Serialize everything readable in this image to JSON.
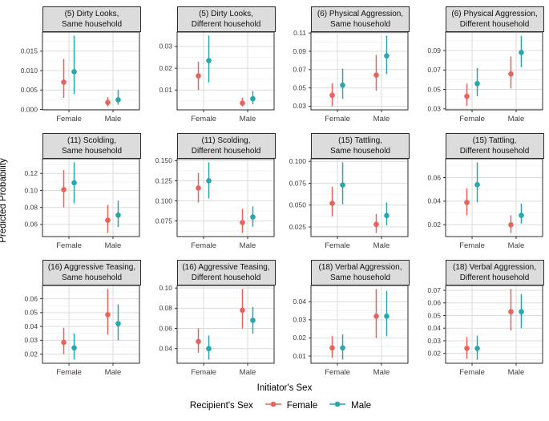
{
  "ylabel": "Predicted Probability",
  "xlabel": "Initiator's Sex",
  "legend": {
    "title": "Recipient's Sex",
    "entries": [
      {
        "label": "Female",
        "color": "#E8635C"
      },
      {
        "label": "Male",
        "color": "#26A8AC"
      }
    ]
  },
  "colors": {
    "female": "#E8635C",
    "male": "#26A8AC",
    "strip_bg": "#DCDCDC",
    "panel_border": "#2b2b2b",
    "grid_major": "#DCDCDC",
    "grid_minor": "#F1F1F1",
    "tick_text": "#404040"
  },
  "chart_data": {
    "type": "pointrange",
    "categories": [
      "Female",
      "Male"
    ],
    "series_names": [
      "Female",
      "Male"
    ],
    "legend_position": "bottom",
    "grid": true,
    "panels": [
      {
        "title_lines": [
          "(5) Dirty Looks,",
          "Same household"
        ],
        "ylim": [
          -0.0001,
          0.0199
        ],
        "ytick_values": [
          0.0,
          0.005,
          0.01,
          0.015
        ],
        "ytick_labels": [
          "0.000",
          "0.005",
          "0.010",
          "0.015"
        ],
        "series": [
          {
            "name": "Female",
            "color_key": "female",
            "y": [
              0.007,
              0.0018
            ],
            "lo": [
              0.003,
              0.0008
            ],
            "hi": [
              0.013,
              0.0032
            ]
          },
          {
            "name": "Male",
            "color_key": "male",
            "y": [
              0.0097,
              0.0025
            ],
            "lo": [
              0.004,
              0.0012
            ],
            "hi": [
              0.019,
              0.005
            ]
          }
        ]
      },
      {
        "title_lines": [
          "(5) Dirty Looks,",
          "Different household"
        ],
        "ylim": [
          0.0009,
          0.0366
        ],
        "ytick_values": [
          0.01,
          0.02,
          0.03
        ],
        "ytick_labels": [
          "0.01",
          "0.02",
          "0.03"
        ],
        "series": [
          {
            "name": "Female",
            "color_key": "female",
            "y": [
              0.0165,
              0.004
            ],
            "lo": [
              0.01,
              0.0025
            ],
            "hi": [
              0.023,
              0.0065
            ]
          },
          {
            "name": "Male",
            "color_key": "male",
            "y": [
              0.0235,
              0.006
            ],
            "lo": [
              0.0135,
              0.0035
            ],
            "hi": [
              0.035,
              0.0095
            ]
          }
        ]
      },
      {
        "title_lines": [
          "(6) Physical Aggression,",
          "Same household"
        ],
        "ylim": [
          0.026,
          0.111
        ],
        "ytick_values": [
          0.03,
          0.05,
          0.07,
          0.09,
          0.11
        ],
        "ytick_labels": [
          "0.03",
          "0.05",
          "0.07",
          "0.09",
          "0.11"
        ],
        "series": [
          {
            "name": "Female",
            "color_key": "female",
            "y": [
              0.042,
              0.064
            ],
            "lo": [
              0.03,
              0.047
            ],
            "hi": [
              0.055,
              0.086
            ]
          },
          {
            "name": "Male",
            "color_key": "male",
            "y": [
              0.053,
              0.085
            ],
            "lo": [
              0.038,
              0.065
            ],
            "hi": [
              0.071,
              0.107
            ]
          }
        ]
      },
      {
        "title_lines": [
          "(6) Physical Aggression,",
          "Different household"
        ],
        "ylim": [
          0.029,
          0.109
        ],
        "ytick_values": [
          0.03,
          0.05,
          0.07,
          0.09
        ],
        "ytick_labels": [
          "0.03",
          "0.05",
          "0.07",
          "0.09"
        ],
        "series": [
          {
            "name": "Female",
            "color_key": "female",
            "y": [
              0.043,
              0.066
            ],
            "lo": [
              0.033,
              0.051
            ],
            "hi": [
              0.056,
              0.084
            ]
          },
          {
            "name": "Male",
            "color_key": "male",
            "y": [
              0.056,
              0.088
            ],
            "lo": [
              0.043,
              0.073
            ],
            "hi": [
              0.072,
              0.105
            ]
          }
        ]
      },
      {
        "title_lines": [
          "(11) Scolding,",
          "Same household"
        ],
        "ylim": [
          0.0458,
          0.1372
        ],
        "ytick_values": [
          0.06,
          0.08,
          0.1,
          0.12
        ],
        "ytick_labels": [
          "0.06",
          "0.08",
          "0.10",
          "0.12"
        ],
        "series": [
          {
            "name": "Female",
            "color_key": "female",
            "y": [
              0.101,
              0.065
            ],
            "lo": [
              0.08,
              0.05
            ],
            "hi": [
              0.124,
              0.083
            ]
          },
          {
            "name": "Male",
            "color_key": "male",
            "y": [
              0.109,
              0.071
            ],
            "lo": [
              0.085,
              0.057
            ],
            "hi": [
              0.133,
              0.088
            ]
          }
        ]
      },
      {
        "title_lines": [
          "(11) Scolding,",
          "Different household"
        ],
        "ylim": [
          0.0556,
          0.1524
        ],
        "ytick_values": [
          0.075,
          0.1,
          0.125,
          0.15
        ],
        "ytick_labels": [
          "0.075",
          "0.100",
          "0.125",
          "0.150"
        ],
        "series": [
          {
            "name": "Female",
            "color_key": "female",
            "y": [
              0.116,
              0.073
            ],
            "lo": [
              0.098,
              0.06
            ],
            "hi": [
              0.135,
              0.09
            ]
          },
          {
            "name": "Male",
            "color_key": "male",
            "y": [
              0.125,
              0.08
            ],
            "lo": [
              0.103,
              0.068
            ],
            "hi": [
              0.148,
              0.093
            ]
          }
        ]
      },
      {
        "title_lines": [
          "(15) Tattling,",
          "Same household"
        ],
        "ylim": [
          0.014,
          0.103
        ],
        "ytick_values": [
          0.025,
          0.05,
          0.075,
          0.1
        ],
        "ytick_labels": [
          "0.025",
          "0.050",
          "0.075",
          "0.100"
        ],
        "series": [
          {
            "name": "Female",
            "color_key": "female",
            "y": [
              0.052,
              0.028
            ],
            "lo": [
              0.037,
              0.018
            ],
            "hi": [
              0.071,
              0.04
            ]
          },
          {
            "name": "Male",
            "color_key": "male",
            "y": [
              0.073,
              0.038
            ],
            "lo": [
              0.051,
              0.027
            ],
            "hi": [
              0.099,
              0.053
            ]
          }
        ]
      },
      {
        "title_lines": [
          "(15) Tattling,",
          "Different household"
        ],
        "ylim": [
          0.01,
          0.076
        ],
        "ytick_values": [
          0.02,
          0.04,
          0.06
        ],
        "ytick_labels": [
          "0.02",
          "0.04",
          "0.06"
        ],
        "series": [
          {
            "name": "Female",
            "color_key": "female",
            "y": [
              0.039,
              0.02
            ],
            "lo": [
              0.028,
              0.013
            ],
            "hi": [
              0.051,
              0.028
            ]
          },
          {
            "name": "Male",
            "color_key": "male",
            "y": [
              0.054,
              0.028
            ],
            "lo": [
              0.039,
              0.021
            ],
            "hi": [
              0.073,
              0.038
            ]
          }
        ]
      },
      {
        "title_lines": [
          "(16) Aggressive Teasing,",
          "Same household"
        ],
        "ylim": [
          0.0134,
          0.0696
        ],
        "ytick_values": [
          0.02,
          0.03,
          0.04,
          0.05,
          0.06
        ],
        "ytick_labels": [
          "0.02",
          "0.03",
          "0.04",
          "0.05",
          "0.06"
        ],
        "series": [
          {
            "name": "Female",
            "color_key": "female",
            "y": [
              0.0285,
              0.0485
            ],
            "lo": [
              0.02,
              0.034
            ],
            "hi": [
              0.039,
              0.067
            ]
          },
          {
            "name": "Male",
            "color_key": "male",
            "y": [
              0.0245,
              0.042
            ],
            "lo": [
              0.016,
              0.03
            ],
            "hi": [
              0.035,
              0.056
            ]
          }
        ]
      },
      {
        "title_lines": [
          "(16) Aggressive Teasing,",
          "Different household"
        ],
        "ylim": [
          0.0255,
          0.1025
        ],
        "ytick_values": [
          0.04,
          0.06,
          0.08,
          0.1
        ],
        "ytick_labels": [
          "0.04",
          "0.06",
          "0.08",
          "0.10"
        ],
        "series": [
          {
            "name": "Female",
            "color_key": "female",
            "y": [
              0.047,
              0.078
            ],
            "lo": [
              0.036,
              0.06
            ],
            "hi": [
              0.06,
              0.099
            ]
          },
          {
            "name": "Male",
            "color_key": "male",
            "y": [
              0.04,
              0.068
            ],
            "lo": [
              0.029,
              0.055
            ],
            "hi": [
              0.053,
              0.081
            ]
          }
        ]
      },
      {
        "title_lines": [
          "(18) Verbal Aggression,",
          "Same household"
        ],
        "ylim": [
          0.006,
          0.049
        ],
        "ytick_values": [
          0.01,
          0.02,
          0.03,
          0.04
        ],
        "ytick_labels": [
          "0.01",
          "0.02",
          "0.03",
          "0.04"
        ],
        "series": [
          {
            "name": "Female",
            "color_key": "female",
            "y": [
              0.0145,
              0.032
            ],
            "lo": [
              0.009,
              0.02
            ],
            "hi": [
              0.021,
              0.047
            ]
          },
          {
            "name": "Male",
            "color_key": "male",
            "y": [
              0.0145,
              0.032
            ],
            "lo": [
              0.008,
              0.021
            ],
            "hi": [
              0.022,
              0.046
            ]
          }
        ]
      },
      {
        "title_lines": [
          "(18) Verbal Aggression,",
          "Different household"
        ],
        "ylim": [
          0.0122,
          0.0738
        ],
        "ytick_values": [
          0.02,
          0.03,
          0.04,
          0.05,
          0.06,
          0.07
        ],
        "ytick_labels": [
          "0.02",
          "0.03",
          "0.04",
          "0.05",
          "0.06",
          "0.07"
        ],
        "series": [
          {
            "name": "Female",
            "color_key": "female",
            "y": [
              0.024,
              0.053
            ],
            "lo": [
              0.016,
              0.038
            ],
            "hi": [
              0.033,
              0.071
            ]
          },
          {
            "name": "Male",
            "color_key": "male",
            "y": [
              0.024,
              0.053
            ],
            "lo": [
              0.015,
              0.04
            ],
            "hi": [
              0.034,
              0.067
            ]
          }
        ]
      }
    ]
  }
}
